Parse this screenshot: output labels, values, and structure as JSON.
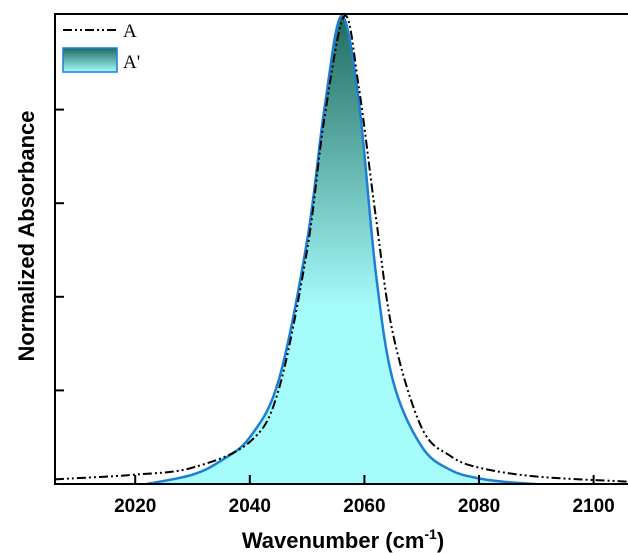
{
  "chart_data": {
    "type": "area",
    "xlabel": "Wavenumber (cm",
    "xlabel_sup": "-1",
    "xlabel_suffix": ")",
    "ylabel": "Normalized Absorbance",
    "xlim": [
      2006,
      2106
    ],
    "ylim": [
      0,
      1.0
    ],
    "xticks": [
      2020,
      2040,
      2060,
      2080,
      2100
    ],
    "yticks_unlabeled": [
      0.2,
      0.4,
      0.6,
      0.8
    ],
    "grid": false,
    "legend_position": "top-left",
    "series": [
      {
        "name": "A",
        "style": "dash-dot line",
        "color": "#000000",
        "peak_x": 2056.5,
        "x": [
          2006,
          2020,
          2030,
          2040,
          2045,
          2050,
          2053,
          2056.5,
          2059,
          2062,
          2065,
          2070,
          2075,
          2080,
          2090,
          2106
        ],
        "y": [
          0.01,
          0.02,
          0.035,
          0.09,
          0.2,
          0.5,
          0.78,
          1.0,
          0.85,
          0.57,
          0.32,
          0.12,
          0.06,
          0.035,
          0.016,
          0.005
        ]
      },
      {
        "name": "A'",
        "style": "filled area",
        "line_color": "#1b7fd6",
        "fill_top_color": "#1f6b5f",
        "fill_bottom_color": "#a6fbfb",
        "peak_x": 2056,
        "x": [
          2022,
          2030,
          2035,
          2040,
          2045,
          2050,
          2053,
          2056,
          2059,
          2062,
          2065,
          2070,
          2075,
          2080,
          2085,
          2090
        ],
        "y": [
          0.0,
          0.02,
          0.05,
          0.1,
          0.22,
          0.52,
          0.8,
          1.0,
          0.82,
          0.45,
          0.22,
          0.08,
          0.03,
          0.012,
          0.004,
          0.0
        ]
      }
    ]
  }
}
